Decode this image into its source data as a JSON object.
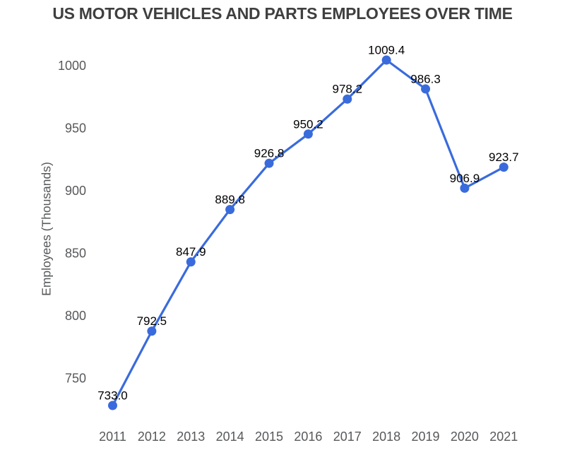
{
  "chart_data": {
    "type": "line",
    "title": "US MOTOR VEHICLES AND PARTS EMPLOYEES OVER TIME",
    "xlabel": "",
    "ylabel": "Employees (Thousands)",
    "x": [
      "2011",
      "2012",
      "2013",
      "2014",
      "2015",
      "2016",
      "2017",
      "2018",
      "2019",
      "2020",
      "2021"
    ],
    "series": [
      {
        "name": "Employees (Thousands)",
        "values": [
          733.0,
          792.5,
          847.9,
          889.8,
          926.8,
          950.2,
          978.2,
          1009.4,
          986.3,
          906.9,
          923.7
        ],
        "point_labels": [
          "733.0",
          "792.5",
          "847.9",
          "889.8",
          "926.8",
          "950.2",
          "978.2",
          "1009.4",
          "986.3",
          "906.9",
          "923.7"
        ]
      }
    ],
    "yticks": [
      750,
      800,
      850,
      900,
      950,
      1000
    ],
    "ylim": [
      727,
      1020
    ],
    "grid": false,
    "legend": "none",
    "markers": true
  },
  "colors": {
    "line": "#3a6bdc",
    "marker": "#3a6bdc",
    "title_text": "#3f3f3f",
    "axis_text": "#57585a",
    "point_label_text": "#000000",
    "background": "#ffffff"
  }
}
